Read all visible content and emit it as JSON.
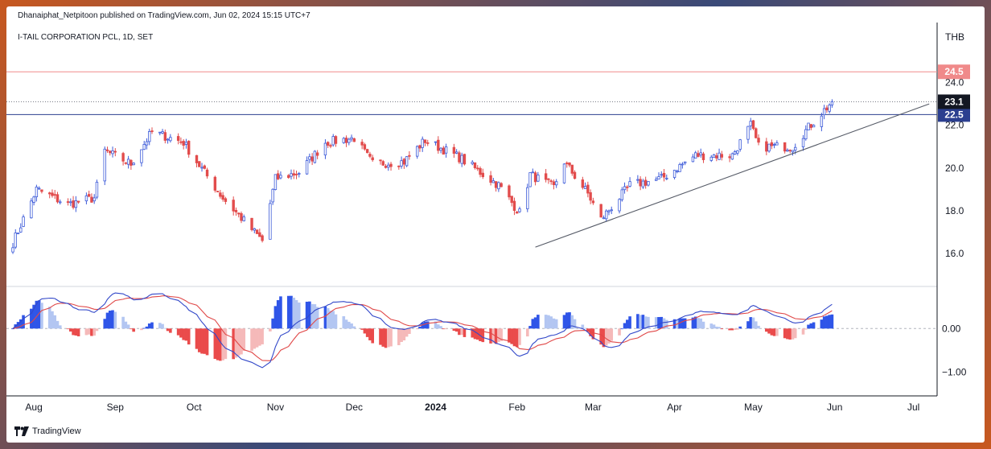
{
  "attribution": "Dhanaiphat_Netpitoon published on TradingView.com, Jun 02, 2024 15:15 UTC+7",
  "symbol_title": "I-TAIL CORPORATION PCL, 1D, SET",
  "currency": "THB",
  "logo_text": "TradingView",
  "colors": {
    "up": "#3d5bd9",
    "down": "#e24c4c",
    "macd_line": "#3349c9",
    "signal_line": "#e04848",
    "hist_pos_strong": "#2f55e8",
    "hist_pos_weak": "#b3c6f2",
    "hist_neg_strong": "#ea4b4b",
    "hist_neg_weak": "#f5b9b9",
    "red_line": "#f08a8a",
    "blue_line": "#2b3f8f"
  },
  "chart_data": [
    {
      "type": "candlestick",
      "title": "I-TAIL CORPORATION PCL, 1D, SET",
      "y_ticks": [
        16.0,
        18.0,
        20.0,
        22.0,
        24.0
      ],
      "ylim": [
        14.5,
        25.6
      ],
      "x_ticks": [
        "Aug",
        "Sep",
        "Oct",
        "Nov",
        "Dec",
        "2024",
        "Feb",
        "Mar",
        "Apr",
        "May",
        "Jun",
        "Jul"
      ],
      "price_path_keypoints": [
        [
          "2023-07-24",
          16.5
        ],
        [
          "2023-08-02",
          19.0
        ],
        [
          "2023-08-14",
          18.3
        ],
        [
          "2023-08-24",
          18.6
        ],
        [
          "2023-08-28",
          20.8
        ],
        [
          "2023-09-07",
          20.2
        ],
        [
          "2023-09-15",
          21.7
        ],
        [
          "2023-09-27",
          21.2
        ],
        [
          "2023-10-02",
          20.3
        ],
        [
          "2023-10-12",
          18.6
        ],
        [
          "2023-10-24",
          17.0
        ],
        [
          "2023-10-27",
          16.6
        ],
        [
          "2023-11-01",
          19.5
        ],
        [
          "2023-11-10",
          19.8
        ],
        [
          "2023-11-20",
          21.2
        ],
        [
          "2023-12-01",
          21.4
        ],
        [
          "2023-12-08",
          20.2
        ],
        [
          "2023-12-20",
          20.3
        ],
        [
          "2023-12-28",
          21.3
        ],
        [
          "2024-01-10",
          20.5
        ],
        [
          "2024-01-25",
          19.2
        ],
        [
          "2024-02-02",
          17.9
        ],
        [
          "2024-02-06",
          19.7
        ],
        [
          "2024-02-15",
          19.1
        ],
        [
          "2024-02-19",
          20.3
        ],
        [
          "2024-02-28",
          18.8
        ],
        [
          "2024-03-04",
          17.6
        ],
        [
          "2024-03-15",
          19.2
        ],
        [
          "2024-03-27",
          19.5
        ],
        [
          "2024-04-09",
          20.6
        ],
        [
          "2024-04-23",
          20.6
        ],
        [
          "2024-04-30",
          22.0
        ],
        [
          "2024-05-03",
          21.0
        ],
        [
          "2024-05-16",
          21.0
        ],
        [
          "2024-05-22",
          21.9
        ],
        [
          "2024-05-31",
          23.1
        ]
      ],
      "horizontal_lines": [
        {
          "label": "24.5",
          "value": 24.5,
          "color": "#f08a8a"
        },
        {
          "label": "22.5",
          "value": 22.5,
          "color": "#2b3f8f"
        }
      ],
      "last_price": {
        "label": "23.1",
        "value": 23.1
      },
      "trendline": {
        "from": [
          "2024-02-08",
          16.3
        ],
        "to": [
          "2024-07-07",
          23.0
        ]
      }
    },
    {
      "type": "macd",
      "y_ticks": [
        0.0,
        -1.0
      ],
      "y_tick_labels": [
        "0.00",
        "−1.00"
      ],
      "ylim": [
        -1.55,
        0.95
      ],
      "x_ticks": [
        "Aug",
        "Sep",
        "Oct",
        "Nov",
        "Dec",
        "2024",
        "Feb",
        "Mar",
        "Apr",
        "May",
        "Jun",
        "Jul"
      ]
    }
  ]
}
